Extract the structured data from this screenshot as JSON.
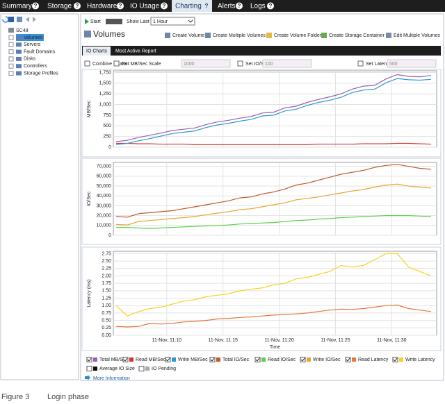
{
  "nav": {
    "tabs": [
      "Summary",
      "Storage",
      "Hardware",
      "IO Usage",
      "Charting",
      "Alerts",
      "Logs"
    ],
    "help": "?"
  },
  "tree": {
    "root": "SC48",
    "items": [
      "Volumes",
      "Servers",
      "Fault Domains",
      "Disks",
      "Controllers",
      "Storage Profiles"
    ]
  },
  "toolbar": {
    "start": "Start",
    "show_last": "Show Last",
    "range": "1 Hour"
  },
  "panel": {
    "title": "Volumes",
    "actions": [
      "Create Volume",
      "Create Multiple Volumes",
      "Create Volume Folder",
      "Create Storage Container",
      "Edit Multiple Volumes"
    ]
  },
  "tabs": [
    "IO Charts",
    "Most Active Report"
  ],
  "options": {
    "combine": "Combine Charts",
    "scales": [
      {
        "label": "Set MB/Sec Scale",
        "value": "1000"
      },
      {
        "label": "Set IO/Sec Scale",
        "value": "100"
      },
      {
        "label": "Set Latency Scale",
        "value": "500"
      }
    ]
  },
  "chart_data": [
    {
      "type": "line",
      "y_label": "MB/Sec",
      "grid": true,
      "xlim": [
        5.25,
        34
      ],
      "ylim": [
        0,
        1790
      ],
      "yticks": [
        0,
        250,
        500,
        750,
        {
          "value": 1000,
          "label": "1,000"
        },
        {
          "value": 1250,
          "label": "1,250"
        },
        {
          "value": 1500,
          "label": "1,500"
        },
        {
          "value": 1750,
          "label": "1,750"
        }
      ],
      "x": [
        5.5,
        6.5,
        7.5,
        8.5,
        9.5,
        10.5,
        11.5,
        12.5,
        13.5,
        14.5,
        15.5,
        16.5,
        17.5,
        18.5,
        19.5,
        20.5,
        21.5,
        22.5,
        23.5,
        24.5,
        25.5,
        26.5,
        27.5,
        28.5,
        29.5,
        30.5,
        31.5,
        32.5,
        33.5
      ],
      "series": [
        {
          "name": "Total MB/Sec",
          "color": "#9a5fb0",
          "values": [
            130,
            160,
            230,
            280,
            330,
            390,
            420,
            450,
            530,
            590,
            630,
            680,
            720,
            800,
            820,
            920,
            960,
            1050,
            1120,
            1180,
            1250,
            1360,
            1430,
            1450,
            1600,
            1700,
            1660,
            1650,
            1680
          ]
        },
        {
          "name": "Read MB/Sec",
          "color": "#d0342c",
          "values": [
            90,
            90,
            80,
            80,
            70,
            70,
            70,
            60,
            60,
            60,
            60,
            60,
            60,
            60,
            60,
            60,
            60,
            60,
            70,
            70,
            70,
            70,
            80,
            80,
            80,
            90,
            90,
            80,
            70
          ]
        },
        {
          "name": "Write MB/Sec",
          "color": "#2a9ad6",
          "values": [
            60,
            90,
            150,
            200,
            260,
            320,
            350,
            380,
            460,
            520,
            560,
            610,
            650,
            730,
            750,
            850,
            890,
            980,
            1050,
            1100,
            1170,
            1280,
            1340,
            1360,
            1510,
            1610,
            1580,
            1570,
            1590
          ]
        }
      ]
    },
    {
      "type": "line",
      "y_label": "IO/Sec",
      "grid": true,
      "xlim": [
        5.25,
        34
      ],
      "ylim": [
        0,
        74000
      ],
      "yticks": [
        0,
        {
          "value": 10000,
          "label": "10,000"
        },
        {
          "value": 20000,
          "label": "20,000"
        },
        {
          "value": 30000,
          "label": "30,000"
        },
        {
          "value": 40000,
          "label": "40,000"
        },
        {
          "value": 50000,
          "label": "50,000"
        },
        {
          "value": 60000,
          "label": "60,000"
        },
        {
          "value": 70000,
          "label": "70,000"
        }
      ],
      "x": [
        5.5,
        6.5,
        7.5,
        8.5,
        9.5,
        10.5,
        11.5,
        12.5,
        13.5,
        14.5,
        15.5,
        16.5,
        17.5,
        18.5,
        19.5,
        20.5,
        21.5,
        22.5,
        23.5,
        24.5,
        25.5,
        26.5,
        27.5,
        28.5,
        29.5,
        30.5,
        31.5,
        32.5,
        33.5
      ],
      "series": [
        {
          "name": "Total IO/Sec",
          "color": "#c05a28",
          "values": [
            19000,
            18500,
            22000,
            23000,
            24000,
            25000,
            27000,
            29000,
            31000,
            33000,
            35000,
            38000,
            39000,
            42000,
            44000,
            47000,
            51000,
            53000,
            56000,
            59000,
            62000,
            64000,
            66000,
            69000,
            71000,
            72000,
            70000,
            68000,
            67000
          ]
        },
        {
          "name": "Read IO/Sec",
          "color": "#5ad24a",
          "values": [
            8000,
            8000,
            7500,
            7000,
            7500,
            8000,
            8500,
            9000,
            9500,
            10000,
            10500,
            11500,
            12000,
            12500,
            13000,
            14000,
            15000,
            15500,
            16500,
            17000,
            18000,
            18500,
            19000,
            19500,
            20000,
            20000,
            20000,
            19500,
            19000
          ]
        },
        {
          "name": "Write IO/Sec",
          "color": "#eaa530",
          "values": [
            11000,
            10500,
            14000,
            15000,
            16000,
            17000,
            18000,
            19000,
            21000,
            22500,
            24000,
            26000,
            27000,
            29000,
            31000,
            33000,
            36000,
            37500,
            39000,
            41000,
            43000,
            45000,
            46500,
            49000,
            51000,
            52000,
            50000,
            49000,
            48000
          ]
        }
      ]
    },
    {
      "type": "line",
      "y_label": "Latency (ms)",
      "x_label": "Time",
      "grid": true,
      "xlim": [
        5.25,
        34
      ],
      "ylim": [
        0,
        2.83
      ],
      "xticks": [
        {
          "value": 10,
          "label": "11-Nov, 11:10"
        },
        {
          "value": 15,
          "label": "11-Nov, 11:15"
        },
        {
          "value": 20,
          "label": "11-Nov, 11:20"
        },
        {
          "value": 25,
          "label": "11-Nov, 11:25"
        },
        {
          "value": 30,
          "label": "11-Nov, 11:30"
        }
      ],
      "yticks": [
        {
          "value": 0,
          "label": "0.00"
        },
        0.25,
        {
          "value": 0.5,
          "label": "0.50"
        },
        0.75,
        {
          "value": 1,
          "label": "1.00"
        },
        1.25,
        {
          "value": 1.5,
          "label": "1.50"
        },
        1.75,
        {
          "value": 2,
          "label": "2.00"
        },
        2.25,
        {
          "value": 2.5,
          "label": "2.50"
        },
        2.75
      ],
      "x": [
        5.5,
        6.5,
        7.5,
        8.5,
        9.5,
        10.5,
        11.5,
        12.5,
        13.5,
        14.5,
        15.5,
        16.5,
        17.5,
        18.5,
        19.5,
        20.5,
        21.5,
        22.5,
        23.5,
        24.5,
        25.5,
        26.5,
        27.5,
        28.5,
        29.5,
        30.5,
        31.5,
        32.5,
        33.5
      ],
      "series": [
        {
          "name": "Read Latency",
          "color": "#e8763a",
          "values": [
            0.3,
            0.28,
            0.3,
            0.4,
            0.38,
            0.4,
            0.45,
            0.47,
            0.5,
            0.55,
            0.57,
            0.6,
            0.62,
            0.65,
            0.68,
            0.7,
            0.72,
            0.75,
            0.8,
            0.85,
            0.88,
            0.87,
            0.9,
            0.95,
            1.0,
            1.02,
            0.9,
            0.85,
            0.8
          ]
        },
        {
          "name": "Write Latency",
          "color": "#f5d21c",
          "values": [
            1.0,
            0.65,
            0.8,
            0.9,
            0.95,
            1.05,
            1.15,
            1.2,
            1.3,
            1.35,
            1.4,
            1.5,
            1.55,
            1.6,
            1.7,
            1.75,
            1.9,
            1.95,
            2.05,
            2.15,
            2.35,
            2.3,
            2.35,
            2.55,
            2.75,
            2.75,
            2.3,
            2.15,
            2.0
          ]
        }
      ]
    }
  ],
  "legend_extra": [
    "Average IO Size",
    "IO Pending"
  ],
  "more_info": "More Information",
  "caption": {
    "figure": "Figure 3",
    "text": "Login phase"
  }
}
